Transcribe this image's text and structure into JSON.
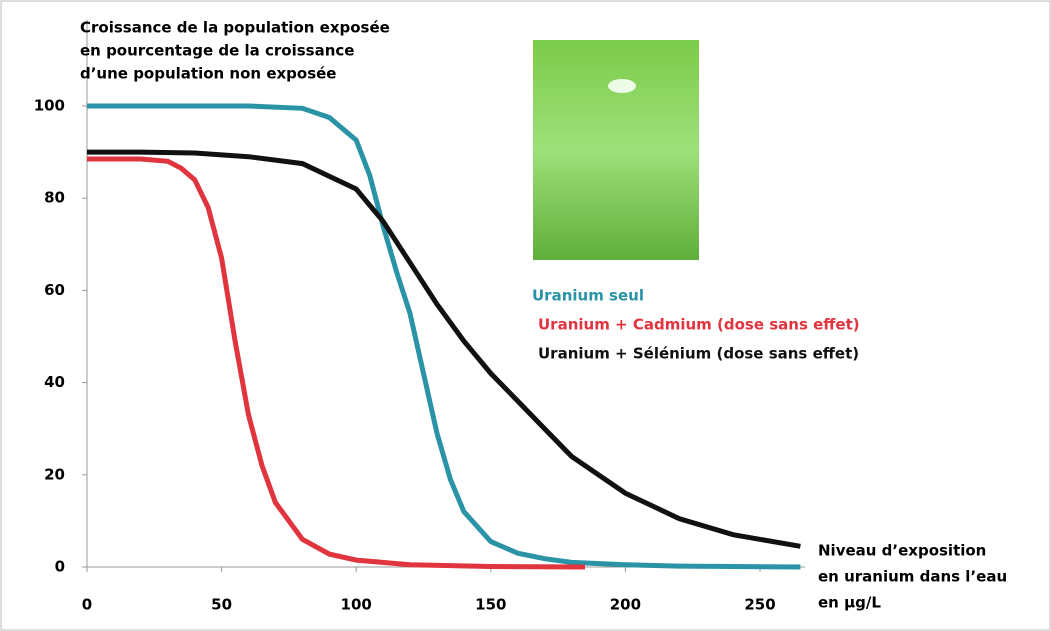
{
  "chart_data": {
    "type": "line",
    "y_label": [
      "Croissance de la population exposée",
      "en pourcentage de la croissance",
      "d’une population non exposée"
    ],
    "x_label": [
      "Niveau d’exposition",
      "en uranium dans l’eau",
      "en µg/L"
    ],
    "xlim": [
      0,
      265
    ],
    "xticks": [
      0,
      50,
      100,
      150,
      200,
      250
    ],
    "ylim": [
      0,
      100
    ],
    "yticks": [
      0,
      20,
      40,
      60,
      80,
      100
    ],
    "series": [
      {
        "name": "Uranium seul",
        "color": "#2a93a5",
        "x": [
          0,
          20,
          40,
          60,
          80,
          90,
          100,
          105,
          110,
          115,
          120,
          125,
          130,
          135,
          140,
          150,
          160,
          170,
          180,
          200,
          220,
          240,
          265
        ],
        "values": [
          100,
          100,
          100,
          100,
          99.5,
          97.5,
          92.6,
          85,
          74,
          64,
          55,
          42,
          29,
          19,
          12,
          5.5,
          3,
          1.8,
          1,
          0.5,
          0.2,
          0.1,
          0
        ]
      },
      {
        "name": "Uranium + Cadmium (dose sans effet)",
        "color": "#e0343e",
        "x": [
          0,
          20,
          30,
          35,
          40,
          45,
          50,
          55,
          60,
          65,
          70,
          80,
          90,
          100,
          120,
          150,
          185
        ],
        "values": [
          88.5,
          88.5,
          88,
          86.5,
          84,
          78,
          67,
          49,
          33,
          22,
          14,
          6,
          2.8,
          1.5,
          0.5,
          0.1,
          0
        ]
      },
      {
        "name": "Uranium + Sélénium (dose sans effet)",
        "color": "#111111",
        "x": [
          0,
          20,
          40,
          60,
          80,
          100,
          110,
          120,
          130,
          140,
          150,
          160,
          170,
          180,
          200,
          220,
          240,
          265
        ],
        "values": [
          90,
          90,
          89.8,
          89,
          87.5,
          82,
          75,
          66,
          57,
          49,
          42,
          36,
          30,
          24,
          16,
          10.5,
          7,
          4.5
        ]
      }
    ]
  }
}
